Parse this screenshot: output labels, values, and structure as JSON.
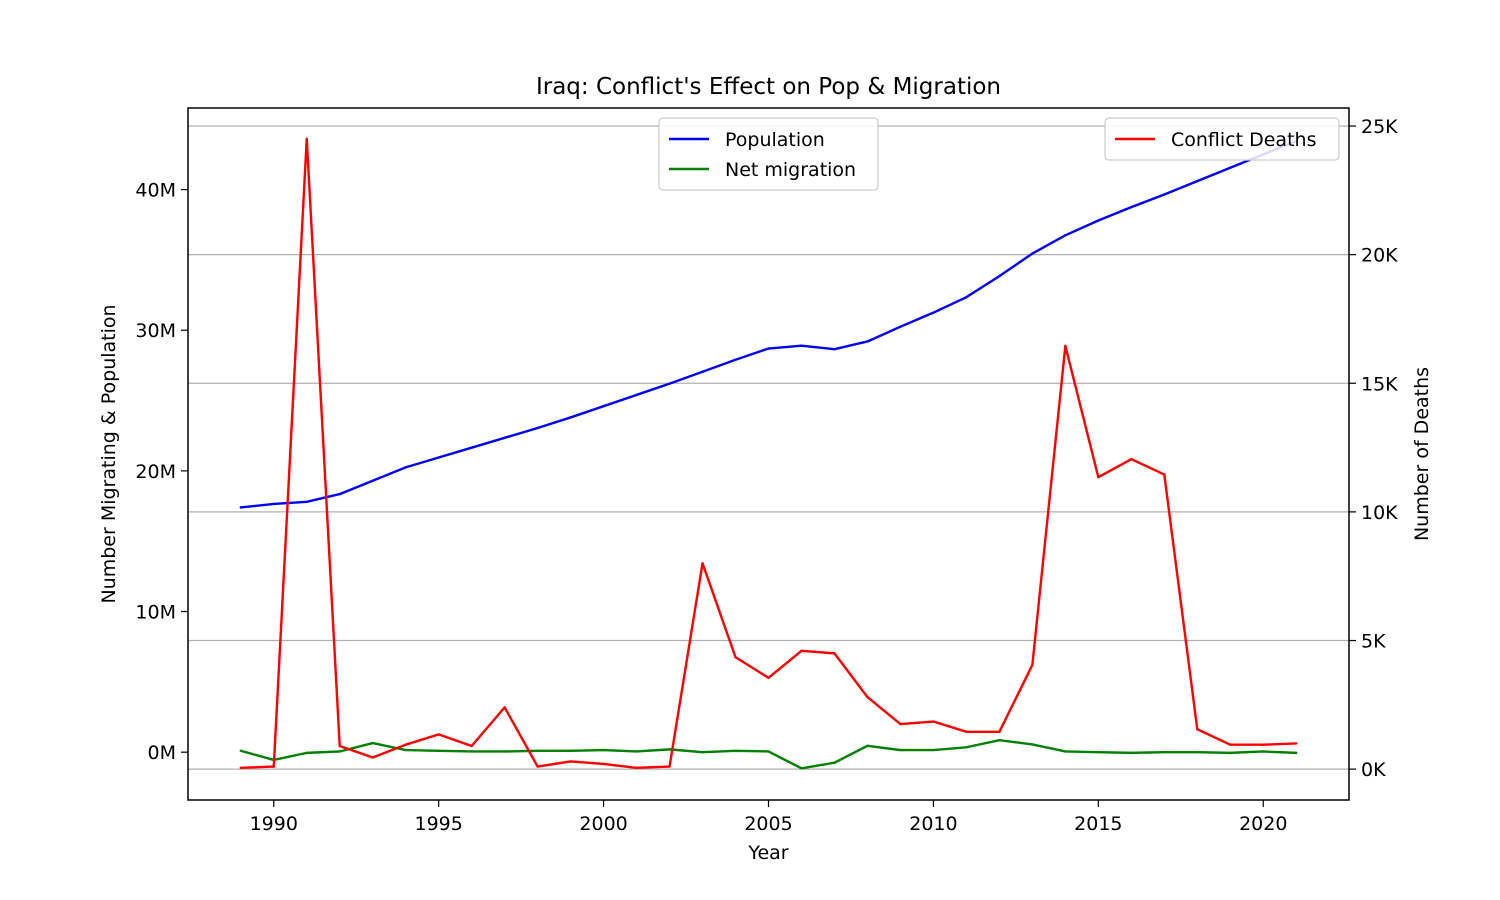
{
  "chart_data": {
    "type": "line",
    "title": "Iraq: Conflict's Effect on Pop & Migration",
    "xlabel": "Year",
    "ylabel_left": "Number Migrating & Population",
    "ylabel_right": "Number of Deaths",
    "xlim": [
      1987.4,
      2022.6
    ],
    "ylim_left": [
      -3400000,
      45800000
    ],
    "ylim_right": [
      -1200,
      25700
    ],
    "x_ticks": [
      1990,
      1995,
      2000,
      2005,
      2010,
      2015,
      2020
    ],
    "x_tick_labels": [
      "1990",
      "1995",
      "2000",
      "2005",
      "2010",
      "2015",
      "2020"
    ],
    "y_left_ticks": [
      0,
      10000000,
      20000000,
      30000000,
      40000000
    ],
    "y_left_tick_labels": [
      "0M",
      "10M",
      "20M",
      "30M",
      "40M"
    ],
    "y_right_ticks": [
      0,
      5000,
      10000,
      15000,
      20000,
      25000
    ],
    "y_right_tick_labels": [
      "0K",
      "5K",
      "10K",
      "15K",
      "20K",
      "25K"
    ],
    "grid": "horizontal-right-axis",
    "x": [
      1989,
      1990,
      1991,
      1992,
      1993,
      1994,
      1995,
      1996,
      1997,
      1998,
      1999,
      2000,
      2001,
      2002,
      2003,
      2004,
      2005,
      2006,
      2007,
      2008,
      2009,
      2010,
      2011,
      2012,
      2013,
      2014,
      2015,
      2016,
      2017,
      2018,
      2019,
      2020,
      2021
    ],
    "series": [
      {
        "name": "Population",
        "axis": "left",
        "color": "#0000ff",
        "values": [
          17400000,
          17650000,
          17800000,
          18350000,
          19300000,
          20250000,
          20950000,
          21650000,
          22350000,
          23050000,
          23800000,
          24600000,
          25400000,
          26200000,
          27050000,
          27900000,
          28700000,
          28900000,
          28650000,
          29200000,
          30250000,
          31250000,
          32350000,
          33850000,
          35450000,
          36750000,
          37800000,
          38750000,
          39650000,
          40600000,
          41550000,
          42500000,
          43450000
        ]
      },
      {
        "name": "Net migration",
        "axis": "left",
        "color": "#008000",
        "values": [
          100000,
          -550000,
          -50000,
          50000,
          650000,
          150000,
          100000,
          50000,
          50000,
          100000,
          100000,
          150000,
          50000,
          200000,
          0,
          100000,
          50000,
          -1150000,
          -750000,
          450000,
          150000,
          150000,
          350000,
          850000,
          550000,
          50000,
          0,
          -50000,
          0,
          0,
          -50000,
          50000,
          -50000
        ]
      },
      {
        "name": "Conflict Deaths",
        "axis": "right",
        "color": "#ff0000",
        "values": [
          50,
          100,
          24500,
          900,
          450,
          950,
          1350,
          900,
          2400,
          100,
          300,
          200,
          50,
          100,
          8000,
          4350,
          3550,
          4600,
          4500,
          2800,
          1750,
          1850,
          1450,
          1450,
          4050,
          16450,
          11350,
          12050,
          11450,
          1550,
          950,
          950,
          1000
        ]
      }
    ],
    "legends": [
      {
        "position": "upper-center",
        "entries": [
          "Population",
          "Net migration"
        ]
      },
      {
        "position": "upper-right",
        "entries": [
          "Conflict Deaths"
        ]
      }
    ]
  }
}
